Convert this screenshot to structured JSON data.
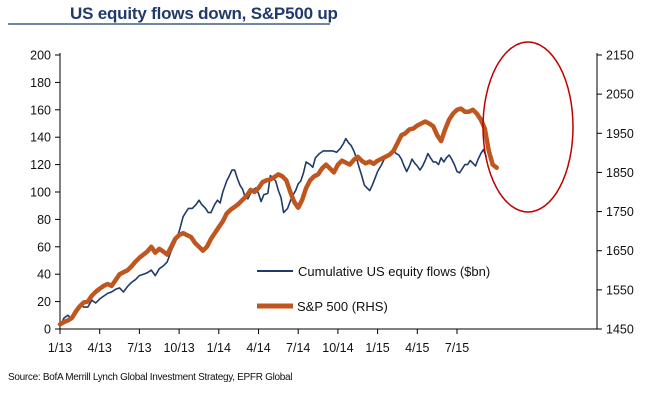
{
  "chart_data": {
    "type": "line",
    "title": "US equity flows down, S&P500 up",
    "source": "Source: BofA Merrill Lynch Global Investment Strategy, EPFR Global",
    "x_tick_labels": [
      "1/13",
      "4/13",
      "7/13",
      "10/13",
      "1/14",
      "4/14",
      "7/14",
      "10/14",
      "1/15",
      "4/15",
      "7/15"
    ],
    "x_unit": "months since Jan 2013",
    "xlim": [
      0,
      33
    ],
    "left_axis": {
      "label": "Cumulative US equity flows ($bn)",
      "ylim": [
        0,
        200
      ],
      "ticks": [
        0,
        20,
        40,
        60,
        80,
        100,
        120,
        140,
        160,
        180,
        200
      ]
    },
    "right_axis": {
      "label": "S&P 500 (RHS)",
      "ylim": [
        1450,
        2150
      ],
      "ticks": [
        1450,
        1550,
        1650,
        1750,
        1850,
        1950,
        2050,
        2150
      ]
    },
    "legend": {
      "position": "center-right",
      "entries": [
        "Cumulative US equity flows ($bn)",
        "S&P 500 (RHS)"
      ]
    },
    "grid": false,
    "annotation": {
      "type": "ellipse",
      "color": "#c00000",
      "note": "highlights divergence in 2015"
    },
    "series": [
      {
        "name": "Cumulative US equity flows ($bn)",
        "axis": "left",
        "color": "#1f3a6b",
        "points": [
          [
            0,
            2
          ],
          [
            0.3,
            8
          ],
          [
            0.6,
            10
          ],
          [
            0.9,
            7
          ],
          [
            1.2,
            12
          ],
          [
            1.5,
            18
          ],
          [
            1.8,
            16
          ],
          [
            2.1,
            16
          ],
          [
            2.4,
            21
          ],
          [
            2.7,
            19
          ],
          [
            3.0,
            22
          ],
          [
            3.3,
            24
          ],
          [
            3.6,
            26
          ],
          [
            3.9,
            27
          ],
          [
            4.2,
            29
          ],
          [
            4.5,
            30
          ],
          [
            4.8,
            27
          ],
          [
            5.1,
            31
          ],
          [
            5.4,
            34
          ],
          [
            5.7,
            36
          ],
          [
            6.0,
            39
          ],
          [
            6.3,
            40
          ],
          [
            6.6,
            41
          ],
          [
            6.9,
            43
          ],
          [
            7.2,
            39
          ],
          [
            7.5,
            44
          ],
          [
            7.8,
            46
          ],
          [
            8.1,
            49
          ],
          [
            8.4,
            57
          ],
          [
            8.7,
            63
          ],
          [
            9.0,
            71
          ],
          [
            9.3,
            82
          ],
          [
            9.5,
            85
          ],
          [
            9.7,
            88
          ],
          [
            10.0,
            88
          ],
          [
            10.3,
            91
          ],
          [
            10.5,
            94
          ],
          [
            10.7,
            91
          ],
          [
            11.0,
            88
          ],
          [
            11.2,
            85
          ],
          [
            11.4,
            85
          ],
          [
            11.7,
            91
          ],
          [
            11.9,
            94
          ],
          [
            12.1,
            92
          ],
          [
            12.3,
            100
          ],
          [
            12.6,
            108
          ],
          [
            12.8,
            112
          ],
          [
            13.0,
            116
          ],
          [
            13.2,
            116
          ],
          [
            13.4,
            110
          ],
          [
            13.6,
            105
          ],
          [
            13.8,
            102
          ],
          [
            14.0,
            96
          ],
          [
            14.2,
            95
          ],
          [
            14.5,
            101
          ],
          [
            14.8,
            103
          ],
          [
            15.0,
            99
          ],
          [
            15.2,
            93
          ],
          [
            15.4,
            98
          ],
          [
            15.7,
            99
          ],
          [
            15.9,
            112
          ],
          [
            16.1,
            110
          ],
          [
            16.3,
            108
          ],
          [
            16.5,
            101
          ],
          [
            16.7,
            96
          ],
          [
            16.9,
            85
          ],
          [
            17.2,
            88
          ],
          [
            17.5,
            96
          ],
          [
            17.8,
            101
          ],
          [
            18.0,
            106
          ],
          [
            18.2,
            108
          ],
          [
            18.4,
            114
          ],
          [
            18.6,
            122
          ],
          [
            18.9,
            120
          ],
          [
            19.1,
            118
          ],
          [
            19.3,
            125
          ],
          [
            19.6,
            128
          ],
          [
            19.9,
            130
          ],
          [
            20.1,
            130
          ],
          [
            20.4,
            130
          ],
          [
            20.6,
            130
          ],
          [
            20.9,
            129
          ],
          [
            21.2,
            132
          ],
          [
            21.4,
            135
          ],
          [
            21.6,
            139
          ],
          [
            21.8,
            136
          ],
          [
            22.0,
            134
          ],
          [
            22.2,
            130
          ],
          [
            22.4,
            125
          ],
          [
            22.6,
            118
          ],
          [
            22.8,
            112
          ],
          [
            23.0,
            105
          ],
          [
            23.2,
            103
          ],
          [
            23.4,
            101
          ],
          [
            23.6,
            105
          ],
          [
            23.8,
            110
          ],
          [
            24.0,
            115
          ],
          [
            24.3,
            120
          ],
          [
            24.5,
            124
          ],
          [
            24.7,
            127
          ],
          [
            24.9,
            128
          ],
          [
            25.2,
            131
          ],
          [
            25.4,
            128
          ],
          [
            25.6,
            127
          ],
          [
            25.8,
            124
          ],
          [
            26.0,
            119
          ],
          [
            26.2,
            115
          ],
          [
            26.4,
            119
          ],
          [
            26.6,
            124
          ],
          [
            26.8,
            121
          ],
          [
            27.0,
            119
          ],
          [
            27.2,
            116
          ],
          [
            27.4,
            119
          ],
          [
            27.6,
            123
          ],
          [
            27.8,
            128
          ],
          [
            28.0,
            125
          ],
          [
            28.2,
            122
          ],
          [
            28.4,
            122
          ],
          [
            28.6,
            120
          ],
          [
            28.8,
            125
          ],
          [
            29.0,
            122
          ],
          [
            29.2,
            125
          ],
          [
            29.4,
            127
          ],
          [
            29.6,
            124
          ],
          [
            29.8,
            120
          ],
          [
            30.0,
            115
          ],
          [
            30.2,
            114
          ],
          [
            30.4,
            117
          ],
          [
            30.6,
            120
          ],
          [
            30.8,
            120
          ],
          [
            31.0,
            123
          ],
          [
            31.2,
            121
          ],
          [
            31.4,
            119
          ],
          [
            31.6,
            124
          ],
          [
            31.8,
            128
          ],
          [
            32.0,
            131
          ],
          [
            32.2,
            126
          ]
        ]
      },
      {
        "name": "S&P 500 (RHS)",
        "axis": "right",
        "color": "#c0561f",
        "points": [
          [
            0,
            1462
          ],
          [
            0.3,
            1468
          ],
          [
            0.6,
            1472
          ],
          [
            0.9,
            1478
          ],
          [
            1.2,
            1495
          ],
          [
            1.5,
            1508
          ],
          [
            1.8,
            1518
          ],
          [
            2.1,
            1520
          ],
          [
            2.4,
            1535
          ],
          [
            2.7,
            1545
          ],
          [
            3.0,
            1553
          ],
          [
            3.3,
            1560
          ],
          [
            3.6,
            1565
          ],
          [
            3.9,
            1560
          ],
          [
            4.2,
            1575
          ],
          [
            4.5,
            1590
          ],
          [
            4.8,
            1595
          ],
          [
            5.1,
            1600
          ],
          [
            5.4,
            1610
          ],
          [
            5.7,
            1622
          ],
          [
            6.0,
            1632
          ],
          [
            6.3,
            1640
          ],
          [
            6.6,
            1648
          ],
          [
            6.9,
            1660
          ],
          [
            7.2,
            1645
          ],
          [
            7.5,
            1655
          ],
          [
            7.8,
            1648
          ],
          [
            8.1,
            1640
          ],
          [
            8.4,
            1660
          ],
          [
            8.7,
            1680
          ],
          [
            9.0,
            1690
          ],
          [
            9.3,
            1695
          ],
          [
            9.6,
            1690
          ],
          [
            9.9,
            1685
          ],
          [
            10.2,
            1670
          ],
          [
            10.5,
            1660
          ],
          [
            10.8,
            1650
          ],
          [
            11.1,
            1660
          ],
          [
            11.4,
            1680
          ],
          [
            11.7,
            1695
          ],
          [
            12.0,
            1710
          ],
          [
            12.3,
            1725
          ],
          [
            12.6,
            1745
          ],
          [
            12.9,
            1755
          ],
          [
            13.2,
            1762
          ],
          [
            13.5,
            1770
          ],
          [
            13.8,
            1780
          ],
          [
            14.1,
            1790
          ],
          [
            14.4,
            1805
          ],
          [
            14.7,
            1800
          ],
          [
            15.0,
            1810
          ],
          [
            15.3,
            1825
          ],
          [
            15.6,
            1830
          ],
          [
            15.9,
            1832
          ],
          [
            16.2,
            1838
          ],
          [
            16.5,
            1845
          ],
          [
            16.8,
            1840
          ],
          [
            17.1,
            1830
          ],
          [
            17.4,
            1800
          ],
          [
            17.7,
            1775
          ],
          [
            18.0,
            1760
          ],
          [
            18.3,
            1780
          ],
          [
            18.6,
            1810
          ],
          [
            18.9,
            1830
          ],
          [
            19.2,
            1840
          ],
          [
            19.5,
            1845
          ],
          [
            19.8,
            1860
          ],
          [
            20.1,
            1870
          ],
          [
            20.4,
            1860
          ],
          [
            20.7,
            1850
          ],
          [
            21.0,
            1870
          ],
          [
            21.3,
            1880
          ],
          [
            21.6,
            1875
          ],
          [
            21.9,
            1870
          ],
          [
            22.2,
            1882
          ],
          [
            22.5,
            1890
          ],
          [
            22.8,
            1880
          ],
          [
            23.1,
            1873
          ],
          [
            23.4,
            1878
          ],
          [
            23.7,
            1872
          ],
          [
            24.0,
            1880
          ],
          [
            24.3,
            1885
          ],
          [
            24.6,
            1890
          ],
          [
            24.9,
            1895
          ],
          [
            25.2,
            1905
          ],
          [
            25.5,
            1925
          ],
          [
            25.8,
            1945
          ],
          [
            26.1,
            1950
          ],
          [
            26.4,
            1960
          ],
          [
            26.7,
            1962
          ],
          [
            27.0,
            1970
          ],
          [
            27.3,
            1975
          ],
          [
            27.6,
            1980
          ],
          [
            27.9,
            1975
          ],
          [
            28.2,
            1968
          ],
          [
            28.5,
            1945
          ],
          [
            28.8,
            1930
          ],
          [
            29.1,
            1960
          ],
          [
            29.4,
            1985
          ],
          [
            29.7,
            2000
          ],
          [
            30.0,
            2010
          ],
          [
            30.3,
            2013
          ],
          [
            30.6,
            2005
          ],
          [
            30.9,
            2005
          ],
          [
            31.2,
            2010
          ],
          [
            31.5,
            2000
          ],
          [
            31.8,
            1985
          ],
          [
            32.1,
            1962
          ],
          [
            32.4,
            1905
          ],
          [
            32.7,
            1870
          ],
          [
            33.0,
            1862
          ]
        ]
      }
    ]
  }
}
